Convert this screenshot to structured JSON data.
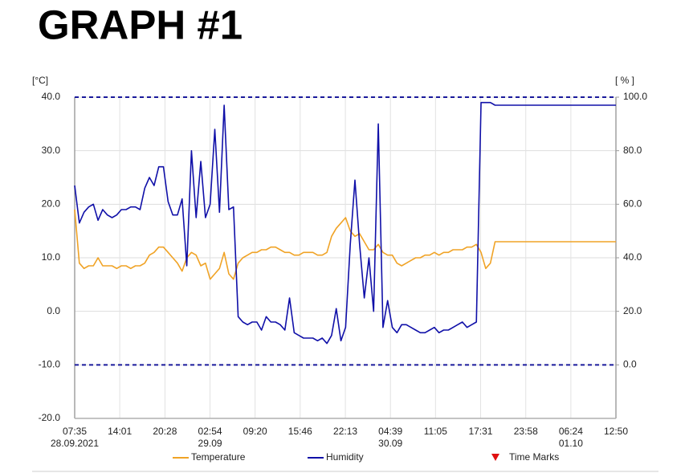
{
  "chart_data": {
    "type": "line",
    "title": "GRAPH #1",
    "y_label": "[°C]",
    "y2_label": "[ % ]",
    "ylim": [
      -20,
      40
    ],
    "yticks": [
      {
        "value": -20,
        "label": "-20.0"
      },
      {
        "value": -10,
        "label": "-10.0"
      },
      {
        "value": 0,
        "label": "0.0"
      },
      {
        "value": 10,
        "label": "10.0"
      },
      {
        "value": 20,
        "label": "20.0"
      },
      {
        "value": 30,
        "label": "30.0"
      },
      {
        "value": 40,
        "label": "40.0"
      }
    ],
    "y2lim": [
      -20,
      100
    ],
    "y2ticks": [
      {
        "value": 0,
        "label": "0.0"
      },
      {
        "value": 20,
        "label": "20.0"
      },
      {
        "value": 40,
        "label": "40.0"
      },
      {
        "value": 60,
        "label": "60.0"
      },
      {
        "value": 80,
        "label": "80.0"
      },
      {
        "value": 100,
        "label": "100.0"
      }
    ],
    "xlim": [
      "2021-09-28 07:35",
      "2021-10-01 12:50"
    ],
    "xticks": [
      {
        "value": "2021-09-28 07:35",
        "label": "07:35"
      },
      {
        "value": "2021-09-28 14:01",
        "label": "14:01"
      },
      {
        "value": "2021-09-28 20:28",
        "label": "20:28"
      },
      {
        "value": "2021-09-29 02:54",
        "label": "02:54"
      },
      {
        "value": "2021-09-29 09:20",
        "label": "09:20"
      },
      {
        "value": "2021-09-29 15:46",
        "label": "15:46"
      },
      {
        "value": "2021-09-29 22:13",
        "label": "22:13"
      },
      {
        "value": "2021-09-30 04:39",
        "label": "04:39"
      },
      {
        "value": "2021-09-30 11:05",
        "label": "11:05"
      },
      {
        "value": "2021-09-30 17:31",
        "label": "17:31"
      },
      {
        "value": "2021-09-30 23:58",
        "label": "23:58"
      },
      {
        "value": "2021-10-01 06:24",
        "label": "06:24"
      },
      {
        "value": "2021-10-01 12:50",
        "label": "12:50"
      }
    ],
    "xtick_dates": [
      "28.09.2021",
      null,
      null,
      "29.09",
      null,
      null,
      null,
      "30.09",
      null,
      null,
      null,
      "01.10",
      null
    ],
    "grid": true,
    "limit_lines": {
      "axis": "y2",
      "color": "#1a1a9c",
      "values": [
        0,
        100
      ]
    },
    "time_marks": {
      "name": "Time Marks",
      "color": "#e01010"
    },
    "x": [
      "2021-09-28 07:35",
      "2021-09-28 08:15",
      "2021-09-28 08:55",
      "2021-09-28 09:35",
      "2021-09-28 10:15",
      "2021-09-28 10:55",
      "2021-09-28 11:35",
      "2021-09-28 12:15",
      "2021-09-28 12:55",
      "2021-09-28 13:35",
      "2021-09-28 14:15",
      "2021-09-28 14:55",
      "2021-09-28 15:35",
      "2021-09-28 16:15",
      "2021-09-28 16:55",
      "2021-09-28 17:35",
      "2021-09-28 18:15",
      "2021-09-28 18:55",
      "2021-09-28 19:35",
      "2021-09-28 20:15",
      "2021-09-28 20:55",
      "2021-09-28 21:35",
      "2021-09-28 22:15",
      "2021-09-28 22:55",
      "2021-09-28 23:35",
      "2021-09-29 00:15",
      "2021-09-29 00:55",
      "2021-09-29 01:35",
      "2021-09-29 02:15",
      "2021-09-29 02:55",
      "2021-09-29 03:35",
      "2021-09-29 04:15",
      "2021-09-29 04:55",
      "2021-09-29 05:35",
      "2021-09-29 06:15",
      "2021-09-29 06:55",
      "2021-09-29 07:35",
      "2021-09-29 08:15",
      "2021-09-29 08:55",
      "2021-09-29 09:35",
      "2021-09-29 10:15",
      "2021-09-29 10:55",
      "2021-09-29 11:35",
      "2021-09-29 12:15",
      "2021-09-29 12:55",
      "2021-09-29 13:35",
      "2021-09-29 14:15",
      "2021-09-29 14:55",
      "2021-09-29 15:35",
      "2021-09-29 16:15",
      "2021-09-29 16:55",
      "2021-09-29 17:35",
      "2021-09-29 18:15",
      "2021-09-29 18:55",
      "2021-09-29 19:35",
      "2021-09-29 20:15",
      "2021-09-29 20:55",
      "2021-09-29 21:35",
      "2021-09-29 22:15",
      "2021-09-29 22:55",
      "2021-09-29 23:35",
      "2021-09-30 00:15",
      "2021-09-30 00:55",
      "2021-09-30 01:35",
      "2021-09-30 02:15",
      "2021-09-30 02:55",
      "2021-09-30 03:35",
      "2021-09-30 04:15",
      "2021-09-30 04:55",
      "2021-09-30 05:35",
      "2021-09-30 06:15",
      "2021-09-30 06:55",
      "2021-09-30 07:35",
      "2021-09-30 08:15",
      "2021-09-30 08:55",
      "2021-09-30 09:35",
      "2021-09-30 10:15",
      "2021-09-30 10:55",
      "2021-09-30 11:35",
      "2021-09-30 12:15",
      "2021-09-30 12:55",
      "2021-09-30 13:35",
      "2021-09-30 14:15",
      "2021-09-30 14:55",
      "2021-09-30 15:35",
      "2021-09-30 16:15",
      "2021-09-30 16:55",
      "2021-09-30 17:35",
      "2021-09-30 18:15",
      "2021-09-30 18:55",
      "2021-09-30 19:35",
      "2021-09-30 20:15",
      "2021-09-30 20:55",
      "2021-09-30 21:35",
      "2021-09-30 22:15",
      "2021-09-30 22:55",
      "2021-09-30 23:35",
      "2021-10-01 00:15",
      "2021-10-01 00:55",
      "2021-10-01 01:35",
      "2021-10-01 02:15",
      "2021-10-01 02:55",
      "2021-10-01 03:35",
      "2021-10-01 04:15",
      "2021-10-01 04:55",
      "2021-10-01 05:35",
      "2021-10-01 06:15",
      "2021-10-01 06:55",
      "2021-10-01 07:35",
      "2021-10-01 08:15",
      "2021-10-01 08:55",
      "2021-10-01 09:35",
      "2021-10-01 10:15",
      "2021-10-01 10:55",
      "2021-10-01 11:35",
      "2021-10-01 12:15",
      "2021-10-01 12:50"
    ],
    "series": [
      {
        "name": "Temperature",
        "color": "#f0a326",
        "values": [
          19,
          9,
          8,
          8.5,
          8.5,
          10,
          8.5,
          8.5,
          8.5,
          8,
          8.5,
          8.5,
          8,
          8.5,
          8.5,
          9,
          10.5,
          11,
          12,
          12,
          11,
          10,
          9,
          7.5,
          10,
          11,
          10.5,
          8.5,
          9,
          6,
          7,
          8,
          11,
          7,
          6,
          9,
          10,
          10.5,
          11,
          11,
          11.5,
          11.5,
          12,
          12,
          11.5,
          11,
          11,
          10.5,
          10.5,
          11,
          11,
          11,
          10.5,
          10.5,
          11,
          14,
          15.5,
          16.5,
          17.5,
          15,
          14,
          14.5,
          13,
          11.5,
          11.5,
          12.5,
          11,
          10.5,
          10.5,
          9,
          8.5,
          9,
          9.5,
          10,
          10,
          10.5,
          10.5,
          11,
          10.5,
          11,
          11,
          11.5,
          11.5,
          11.5,
          12,
          12,
          12.5,
          11,
          8,
          9,
          13,
          13,
          13,
          13,
          13,
          13,
          13,
          13,
          13,
          13,
          13,
          13,
          13,
          13,
          13,
          13,
          13,
          13,
          13,
          13,
          13,
          13,
          13,
          13,
          13,
          13,
          13
        ]
      },
      {
        "name": "Humidity",
        "color": "#1010a8",
        "axis": "y2",
        "values": [
          67,
          53,
          57,
          59,
          60,
          54,
          58,
          56,
          55,
          56,
          58,
          58,
          59,
          59,
          58,
          66,
          70,
          67,
          74,
          74,
          61,
          56,
          56,
          62,
          37,
          80,
          55,
          76,
          55,
          60,
          88,
          57,
          97,
          58,
          59,
          18,
          16,
          15,
          16,
          16,
          13,
          18,
          16,
          16,
          15,
          13,
          25,
          12,
          11,
          10,
          10,
          10,
          9,
          10,
          8,
          11,
          21,
          9,
          14,
          45,
          69,
          45,
          25,
          40,
          20,
          90,
          14,
          24,
          14,
          12,
          15,
          15,
          14,
          13,
          12,
          12,
          13,
          14,
          12,
          13,
          13,
          14,
          15,
          16,
          14,
          15,
          16,
          98,
          98,
          98,
          97,
          97,
          97,
          97,
          97,
          97,
          97,
          97,
          97,
          97,
          97,
          97,
          97,
          97,
          97,
          97,
          97,
          97,
          97,
          97,
          97,
          97,
          97,
          97,
          97,
          97,
          97
        ]
      }
    ]
  }
}
